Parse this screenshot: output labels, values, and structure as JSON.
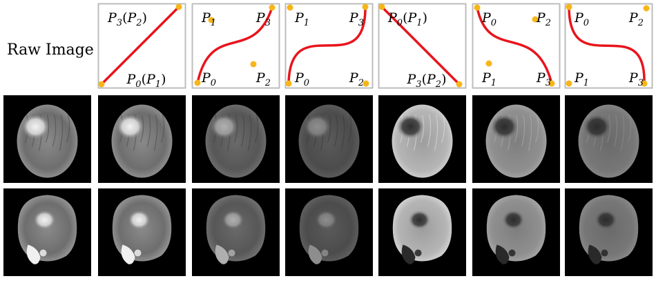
{
  "row_label": "Raw Image",
  "colors": {
    "curve": "#e8141c",
    "control_point": "#f6b61a",
    "panel_border": "#bdbdbd",
    "image_background": "#000000"
  },
  "curve_panels": [
    {
      "labels": [
        {
          "text": "P₃(P₂)",
          "pos": "top-left"
        },
        {
          "text": "P₀(P₁)",
          "pos": "bottom-center"
        }
      ]
    },
    {
      "labels": [
        {
          "text": "P₁",
          "pos": "top-left"
        },
        {
          "text": "P₃",
          "pos": "top-right"
        },
        {
          "text": "P₀",
          "pos": "bottom-left"
        },
        {
          "text": "P₂",
          "pos": "bottom-right"
        }
      ]
    },
    {
      "labels": [
        {
          "text": "P₁",
          "pos": "top-left"
        },
        {
          "text": "P₃",
          "pos": "top-right"
        },
        {
          "text": "P₀",
          "pos": "bottom-left"
        },
        {
          "text": "P₂",
          "pos": "bottom-right"
        }
      ]
    },
    {
      "labels": [
        {
          "text": "P₀(P₁)",
          "pos": "top-left"
        },
        {
          "text": "P₃(P₂)",
          "pos": "bottom-center"
        }
      ]
    },
    {
      "labels": [
        {
          "text": "P₀",
          "pos": "top-left"
        },
        {
          "text": "P₂",
          "pos": "top-right"
        },
        {
          "text": "P₁",
          "pos": "bottom-left"
        },
        {
          "text": "P₃",
          "pos": "bottom-right"
        }
      ]
    },
    {
      "labels": [
        {
          "text": "P₀",
          "pos": "top-left"
        },
        {
          "text": "P₂",
          "pos": "top-right"
        },
        {
          "text": "P₁",
          "pos": "bottom-left"
        },
        {
          "text": "P₃",
          "pos": "bottom-right"
        }
      ]
    }
  ],
  "mri_rows": [
    {
      "slice": "upper-axial",
      "columns": [
        {
          "contrast": "raw",
          "brightness": 1.0,
          "inverted": false
        },
        {
          "contrast": "identity",
          "brightness": 1.0,
          "inverted": false
        },
        {
          "contrast": "compressed",
          "brightness": 0.75,
          "inverted": false
        },
        {
          "contrast": "flattened",
          "brightness": 0.6,
          "inverted": false
        },
        {
          "contrast": "inverted",
          "brightness": 1.0,
          "inverted": true
        },
        {
          "contrast": "inverted-compressed",
          "brightness": 0.8,
          "inverted": true
        },
        {
          "contrast": "inverted-flattened",
          "brightness": 0.65,
          "inverted": true
        }
      ]
    },
    {
      "slice": "lower-axial",
      "columns": [
        {
          "contrast": "raw",
          "brightness": 1.0,
          "inverted": false
        },
        {
          "contrast": "identity",
          "brightness": 1.0,
          "inverted": false
        },
        {
          "contrast": "compressed",
          "brightness": 0.75,
          "inverted": false
        },
        {
          "contrast": "flattened",
          "brightness": 0.6,
          "inverted": false
        },
        {
          "contrast": "inverted",
          "brightness": 1.0,
          "inverted": true
        },
        {
          "contrast": "inverted-compressed",
          "brightness": 0.8,
          "inverted": true
        },
        {
          "contrast": "inverted-flattened",
          "brightness": 0.65,
          "inverted": true
        }
      ]
    }
  ]
}
